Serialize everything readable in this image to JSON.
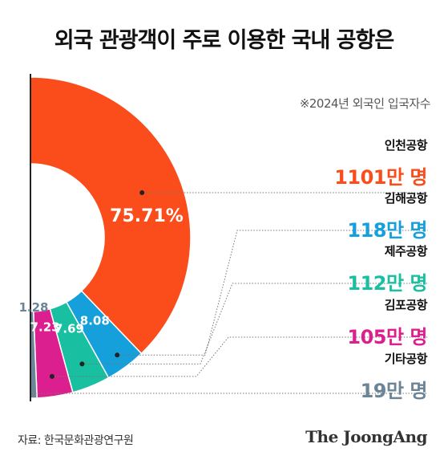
{
  "header": {
    "title": "외국 관광객이 주로 이용한 국내 공항은"
  },
  "note": "※2024년 외국인 입국자수",
  "source": "자료: 한국문화관광연구원",
  "logo": "The JoongAng",
  "chart_data": {
    "type": "pie",
    "title": "외국 관광객이 주로 이용한 국내 공항은",
    "categories": [
      "인천공항",
      "김해공항",
      "제주공항",
      "김포공항",
      "기타공항"
    ],
    "values": [
      1101,
      118,
      112,
      105,
      19
    ],
    "value_labels": [
      "1101만 명",
      "118만 명",
      "112만 명",
      "105만 명",
      "19만 명"
    ],
    "percent_labels": [
      "75.71%",
      "8.08",
      "7.69",
      "7.23",
      "1.28"
    ],
    "unit": "만 명",
    "shape": "half-donut",
    "colors": [
      "#fa4d1b",
      "#159fdb",
      "#18bfa1",
      "#dc1f8e",
      "#6b8496"
    ]
  }
}
